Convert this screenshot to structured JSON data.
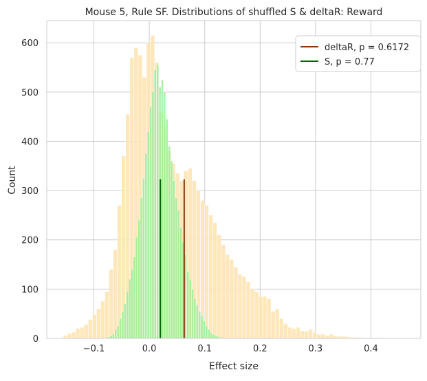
{
  "chart_data": {
    "type": "histogram",
    "title": "Mouse 5, Rule SF. Distributions of shuffled S & deltaR: Reward",
    "xlabel": "Effect size",
    "ylabel": "Count",
    "xlim": [
      -0.185,
      0.49
    ],
    "ylim": [
      0,
      645
    ],
    "xticks": [
      -0.1,
      0.0,
      0.1,
      0.2,
      0.3,
      0.4
    ],
    "xtick_labels": [
      "−0.1",
      "0.0",
      "0.1",
      "0.2",
      "0.3",
      "0.4"
    ],
    "yticks": [
      0,
      100,
      200,
      300,
      400,
      500,
      600
    ],
    "ytick_labels": [
      "0",
      "100",
      "200",
      "300",
      "400",
      "500",
      "600"
    ],
    "grid": true,
    "legend_position": "upper right",
    "series": [
      {
        "name": "deltaR",
        "kind": "histogram",
        "color": "#ffe4b5",
        "bin_start": -0.155,
        "bin_width": 0.0075,
        "counts": [
          6,
          10,
          12,
          20,
          22,
          28,
          38,
          48,
          60,
          75,
          95,
          140,
          180,
          270,
          370,
          455,
          570,
          590,
          575,
          530,
          600,
          615,
          560,
          460,
          430,
          380,
          355,
          335,
          320,
          340,
          345,
          320,
          300,
          280,
          270,
          250,
          235,
          210,
          190,
          170,
          160,
          145,
          130,
          125,
          115,
          100,
          95,
          85,
          85,
          80,
          55,
          60,
          40,
          30,
          22,
          20,
          22,
          15,
          15,
          18,
          12,
          8,
          8,
          6,
          8,
          5,
          4,
          4,
          3,
          2,
          2,
          2,
          1,
          1,
          1,
          1
        ]
      },
      {
        "name": "S",
        "kind": "histogram",
        "color": "#90ee90",
        "bin_start": -0.075,
        "bin_width": 0.0042,
        "counts": [
          3,
          6,
          10,
          18,
          25,
          40,
          55,
          70,
          95,
          120,
          140,
          165,
          205,
          240,
          285,
          325,
          375,
          420,
          470,
          500,
          545,
          555,
          510,
          525,
          500,
          445,
          390,
          360,
          320,
          285,
          260,
          225,
          195,
          170,
          135,
          120,
          100,
          80,
          68,
          55,
          45,
          35,
          25,
          18,
          12,
          8,
          6,
          4,
          2
        ]
      },
      {
        "name": "deltaR, p = 0.6172",
        "kind": "vline",
        "color": "#8b3a10",
        "x": 0.063,
        "ymax": 323
      },
      {
        "name": "S, p = 0.77",
        "kind": "vline",
        "color": "#006400",
        "x": 0.02,
        "ymax": 323
      }
    ],
    "legend": [
      {
        "label": "deltaR, p = 0.6172",
        "color": "#8b3a10"
      },
      {
        "label": "S, p = 0.77",
        "color": "#006400"
      }
    ]
  }
}
